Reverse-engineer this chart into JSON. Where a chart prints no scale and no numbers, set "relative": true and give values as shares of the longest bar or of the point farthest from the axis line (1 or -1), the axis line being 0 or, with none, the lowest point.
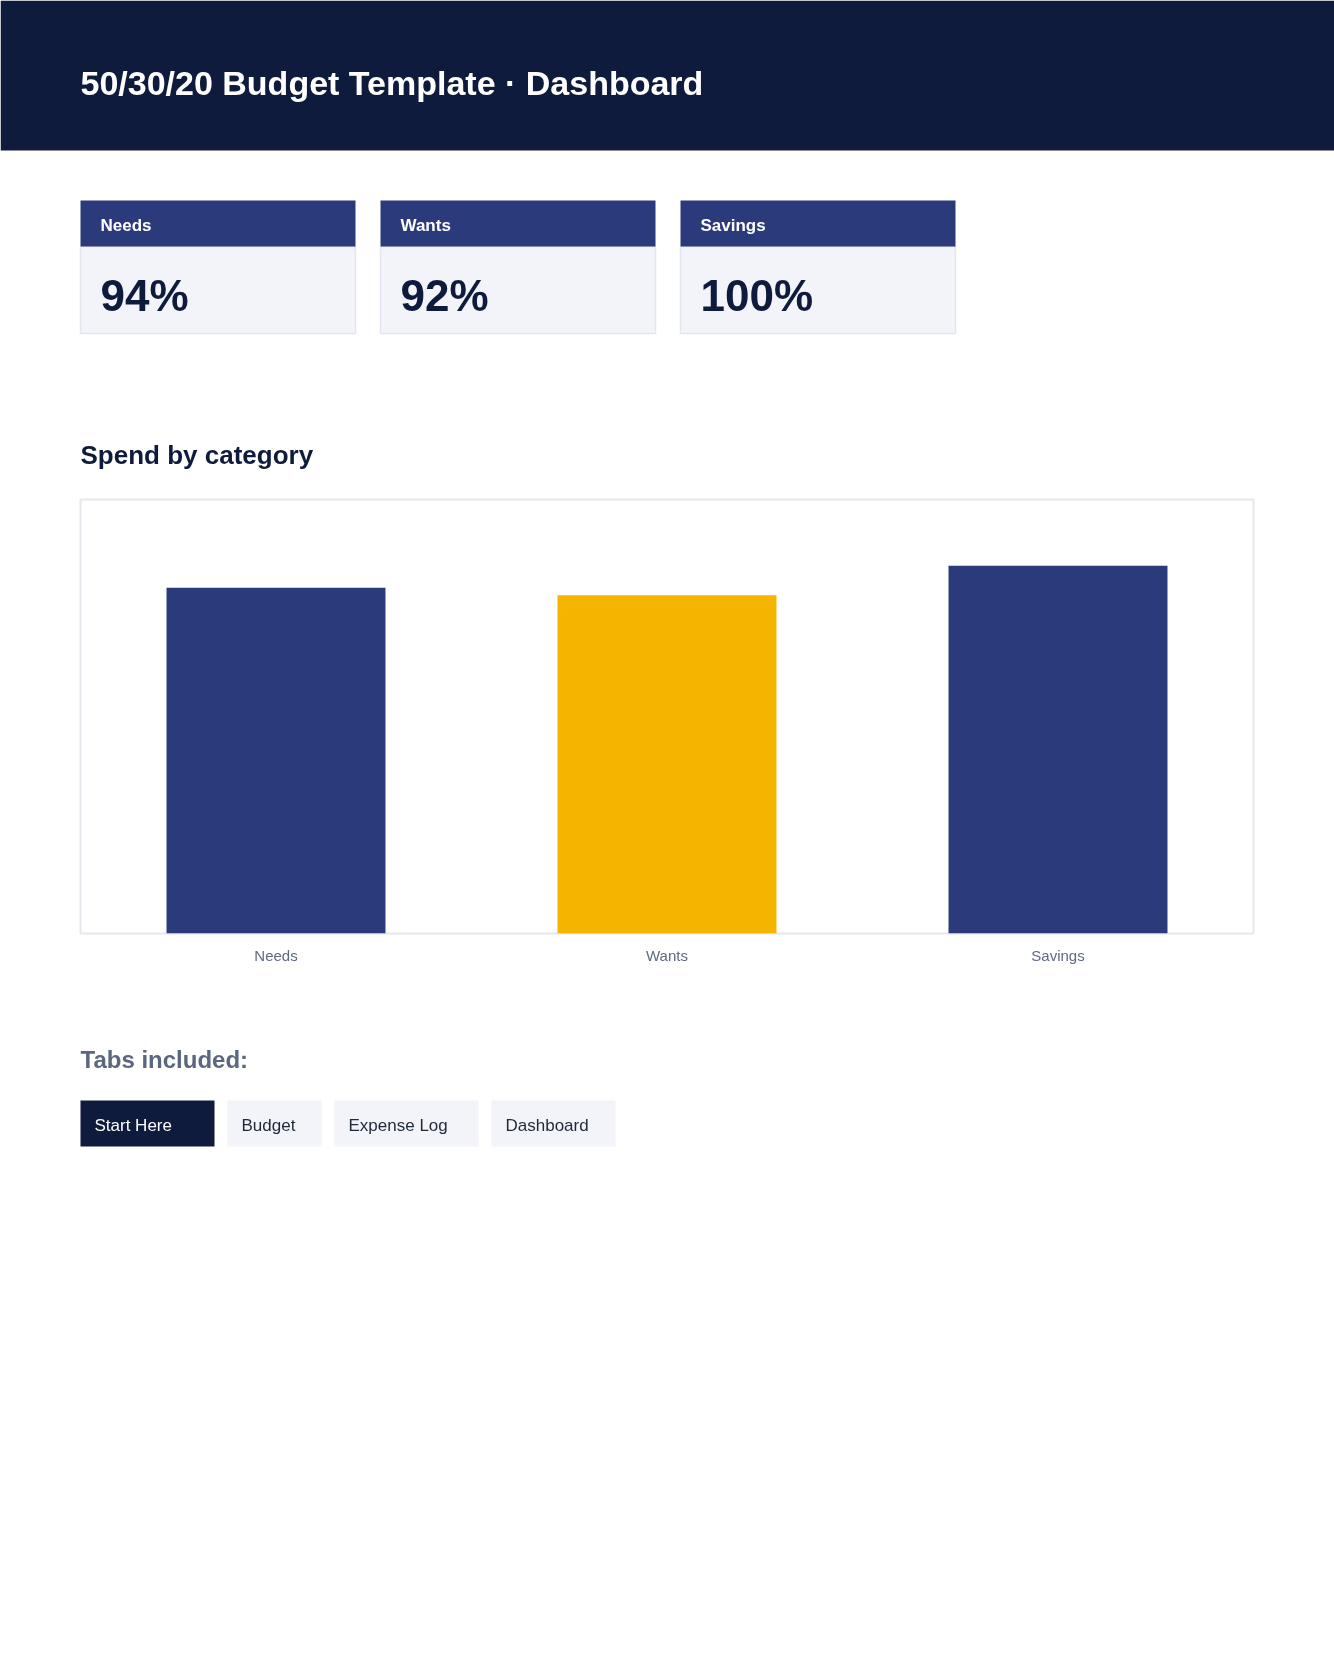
{
  "chart_data": [
    {
      "type": "other",
      "title": "50/30/20 Budget Template · Dashboard",
      "categories": [
        "Needs",
        "Wants",
        "Savings"
      ],
      "value_labels": [
        "94%",
        "92%",
        "100%"
      ]
    },
    {
      "type": "bar",
      "title": "Spend by category",
      "categories": [
        "Needs",
        "Wants",
        "Savings"
      ],
      "values": [
        0.94,
        0.92,
        1
      ],
      "colors": [
        "#2b3a7a",
        "#f4b400",
        "#2b3a7a"
      ],
      "relative": true
    },
    {
      "type": "other",
      "title": "Tabs included:",
      "categories": [
        "Start Here",
        "Budget",
        "Expense Log",
        "Dashboard"
      ],
      "colors": [
        "#0f1b3d",
        "#f3f4f9",
        "#f3f4f9",
        "#f3f4f9"
      ]
    }
  ]
}
